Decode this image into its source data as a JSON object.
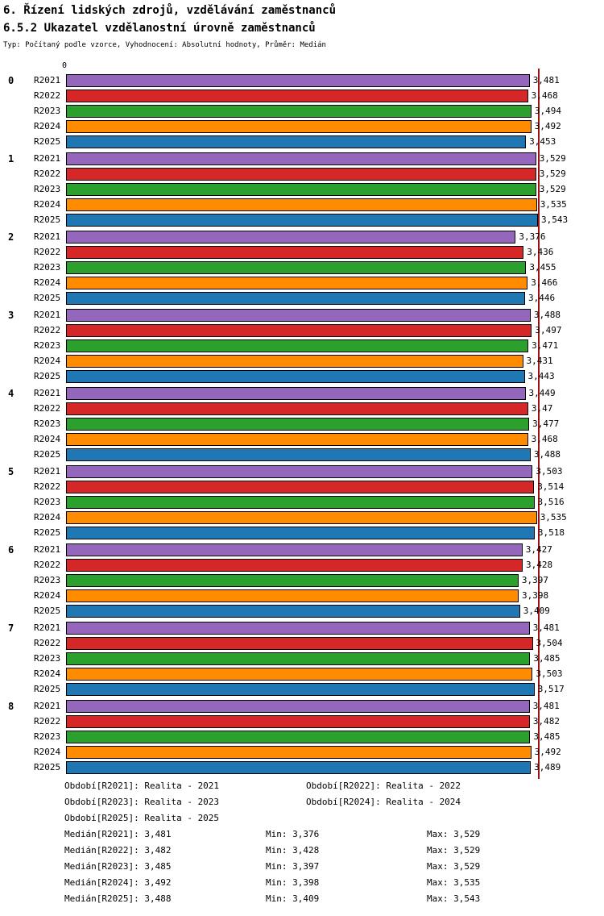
{
  "header": {
    "title": "6. Řízení lidských zdrojů, vzdělávání zaměstnanců",
    "subtitle": "6.5.2 Ukazatel vzdělanostní úrovně zaměstnanců",
    "meta": "Typ: Počítaný podle vzorce, Vyhodnocení: Absolutní hodnoty, Průměr: Medián"
  },
  "chart_data": {
    "type": "bar",
    "orientation": "horizontal",
    "axis_origin_label": "0",
    "xlim": [
      0,
      3.543
    ],
    "reference_line_value": 3.543,
    "reference_line_color": "#991111",
    "grid": false,
    "series_labels": [
      "R2021",
      "R2022",
      "R2023",
      "R2024",
      "R2025"
    ],
    "series_colors": {
      "R2021": "#9467BD",
      "R2022": "#D62728",
      "R2023": "#2CA02C",
      "R2024": "#FF8C00",
      "R2025": "#1F77B4"
    },
    "groups": [
      {
        "label": "0",
        "values": [
          3.481,
          3.468,
          3.494,
          3.492,
          3.453
        ],
        "display": [
          "3,481",
          "3,468",
          "3,494",
          "3,492",
          "3,453"
        ]
      },
      {
        "label": "1",
        "values": [
          3.529,
          3.529,
          3.529,
          3.535,
          3.543
        ],
        "display": [
          "3,529",
          "3,529",
          "3,529",
          "3,535",
          "3,543"
        ]
      },
      {
        "label": "2",
        "values": [
          3.376,
          3.436,
          3.455,
          3.466,
          3.446
        ],
        "display": [
          "3,376",
          "3,436",
          "3,455",
          "3,466",
          "3,446"
        ]
      },
      {
        "label": "3",
        "values": [
          3.488,
          3.497,
          3.471,
          3.431,
          3.443
        ],
        "display": [
          "3,488",
          "3,497",
          "3,471",
          "3,431",
          "3,443"
        ]
      },
      {
        "label": "4",
        "values": [
          3.449,
          3.47,
          3.477,
          3.468,
          3.488
        ],
        "display": [
          "3,449",
          "3,47",
          "3,477",
          "3,468",
          "3,488"
        ]
      },
      {
        "label": "5",
        "values": [
          3.503,
          3.514,
          3.516,
          3.535,
          3.518
        ],
        "display": [
          "3,503",
          "3,514",
          "3,516",
          "3,535",
          "3,518"
        ]
      },
      {
        "label": "6",
        "values": [
          3.427,
          3.428,
          3.397,
          3.398,
          3.409
        ],
        "display": [
          "3,427",
          "3,428",
          "3,397",
          "3,398",
          "3,409"
        ]
      },
      {
        "label": "7",
        "values": [
          3.481,
          3.504,
          3.485,
          3.503,
          3.517
        ],
        "display": [
          "3,481",
          "3,504",
          "3,485",
          "3,503",
          "3,517"
        ]
      },
      {
        "label": "8",
        "values": [
          3.481,
          3.482,
          3.485,
          3.492,
          3.489
        ],
        "display": [
          "3,481",
          "3,482",
          "3,485",
          "3,492",
          "3,489"
        ]
      }
    ]
  },
  "footer": {
    "period_lines": [
      [
        {
          "label": "Období[R2021]:",
          "value": "Realita - 2021"
        },
        {
          "label": "Období[R2022]:",
          "value": "Realita - 2022"
        }
      ],
      [
        {
          "label": "Období[R2023]:",
          "value": "Realita - 2023"
        },
        {
          "label": "Období[R2024]:",
          "value": "Realita - 2024"
        }
      ],
      [
        {
          "label": "Období[R2025]:",
          "value": "Realita - 2025"
        }
      ]
    ],
    "stat_lines": [
      {
        "median_label": "Medián[R2021]:",
        "median_value": "3,481",
        "min_label": "Min:",
        "min_value": "3,376",
        "max_label": "Max:",
        "max_value": "3,529"
      },
      {
        "median_label": "Medián[R2022]:",
        "median_value": "3,482",
        "min_label": "Min:",
        "min_value": "3,428",
        "max_label": "Max:",
        "max_value": "3,529"
      },
      {
        "median_label": "Medián[R2023]:",
        "median_value": "3,485",
        "min_label": "Min:",
        "min_value": "3,397",
        "max_label": "Max:",
        "max_value": "3,529"
      },
      {
        "median_label": "Medián[R2024]:",
        "median_value": "3,492",
        "min_label": "Min:",
        "min_value": "3,398",
        "max_label": "Max:",
        "max_value": "3,535"
      },
      {
        "median_label": "Medián[R2025]:",
        "median_value": "3,488",
        "min_label": "Min:",
        "min_value": "3,409",
        "max_label": "Max:",
        "max_value": "3,543"
      }
    ]
  }
}
